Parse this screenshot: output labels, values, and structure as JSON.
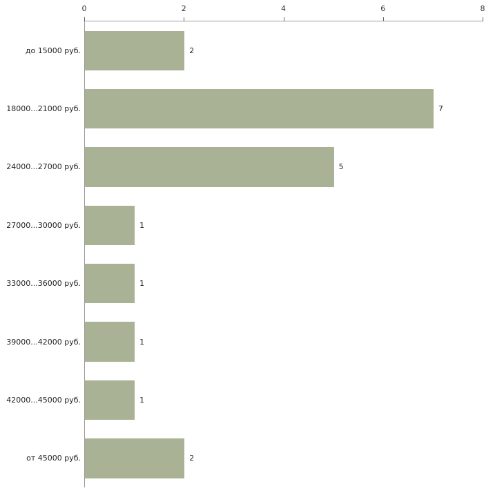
{
  "chart_data": {
    "type": "bar",
    "orientation": "horizontal",
    "title": "",
    "xlabel": "",
    "ylabel": "",
    "categories": [
      "до 15000 руб.",
      "18000...21000 руб.",
      "24000...27000 руб.",
      "27000...30000 руб.",
      "33000...36000 руб.",
      "39000...42000 руб.",
      "42000...45000 руб.",
      "от 45000 руб."
    ],
    "values": [
      2,
      7,
      5,
      1,
      1,
      1,
      1,
      2
    ],
    "xlim": [
      0,
      8
    ],
    "x_ticks": [
      0,
      2,
      4,
      6,
      8
    ],
    "grid": false,
    "value_labels": true,
    "legend": "none",
    "colors": {
      "bar_fill": "#a9b294",
      "axis_line": "#9a9a9a",
      "text": "#222222",
      "background": "#ffffff"
    }
  }
}
